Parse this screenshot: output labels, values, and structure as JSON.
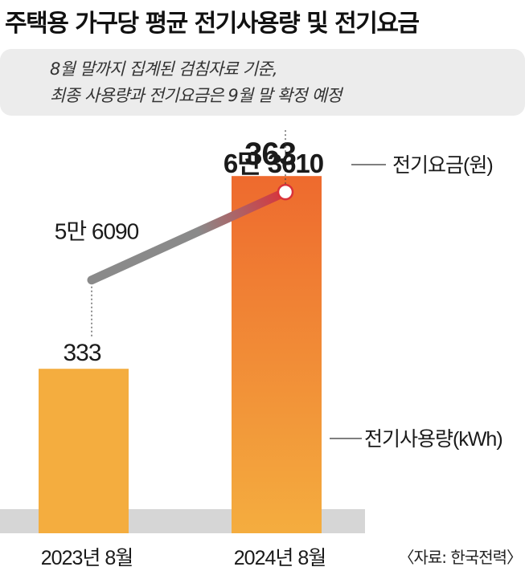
{
  "title": "주택용 가구당 평균 전기사용량 및 전기요금",
  "note": {
    "line1": "8월 말까지 집계된 검침자료 기준,",
    "line2": "최종 사용량과 전기요금은 9월 말 확정 예정"
  },
  "source": "〈자료: 한국전력〉",
  "colors": {
    "bar_2023": "#f4ad3f",
    "bar_2024_top": "#ee6a2e",
    "bar_2024_bottom": "#f4ad3f",
    "line_start": "#8a8a8a",
    "line_end": "#d9323a",
    "baseline": "#d6d6d6"
  },
  "chart_data": {
    "type": "bar",
    "categories": [
      "2023년 8월",
      "2024년 8월"
    ],
    "series": [
      {
        "name": "전기사용량(kWh)",
        "type": "bar",
        "values": [
          333,
          363
        ],
        "labels": [
          "333",
          "363"
        ]
      },
      {
        "name": "전기요금(원)",
        "type": "line",
        "values": [
          56090,
          63610
        ],
        "labels": [
          "5만 6090",
          "6만 3610"
        ]
      }
    ]
  }
}
